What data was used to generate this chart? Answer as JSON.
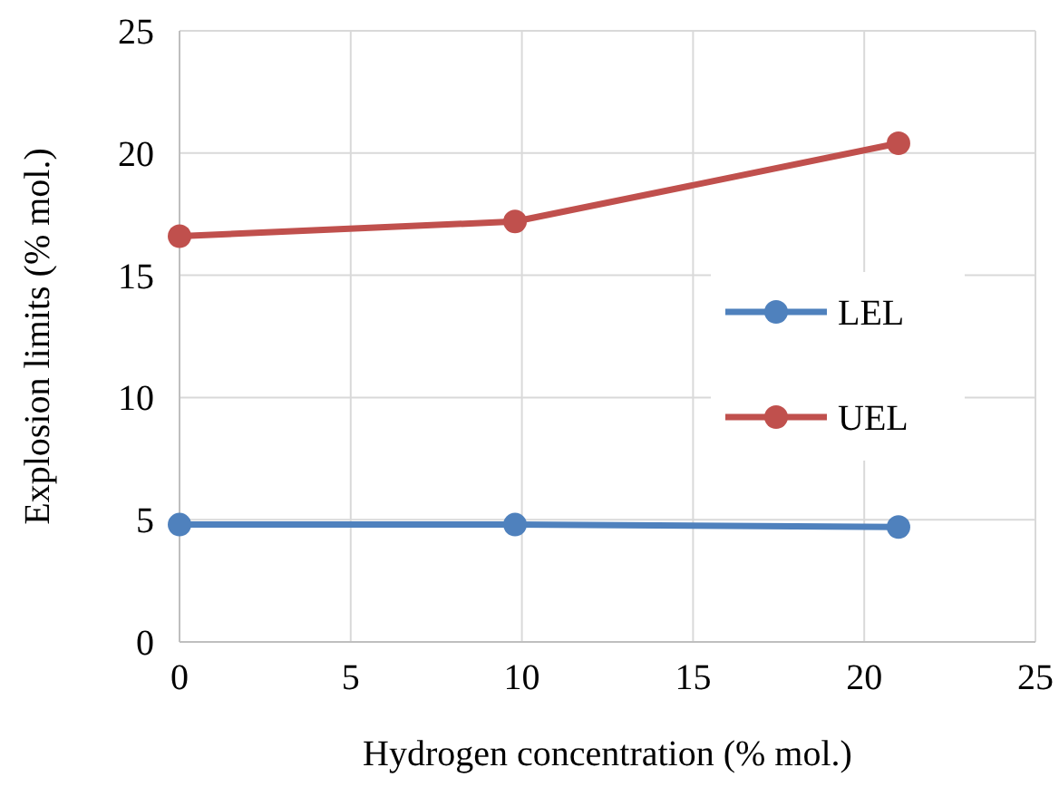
{
  "chart_data": {
    "type": "line",
    "xlabel": "Hydrogen concentration (% mol.)",
    "ylabel": "Explosion limits (% mol.)",
    "x": [
      0,
      9.8,
      21
    ],
    "series": [
      {
        "name": "LEL",
        "color": "#4f81bd",
        "values": [
          4.8,
          4.8,
          4.7
        ]
      },
      {
        "name": "UEL",
        "color": "#c0504d",
        "values": [
          16.6,
          17.2,
          20.4
        ]
      }
    ],
    "xlim": [
      0,
      25
    ],
    "xticks": [
      0,
      5,
      10,
      15,
      20,
      25
    ],
    "ylim": [
      0,
      25
    ],
    "yticks": [
      0,
      5,
      10,
      15,
      20,
      25
    ],
    "grid": true,
    "legend": "right",
    "marker": "circle",
    "line_style": "solid"
  }
}
